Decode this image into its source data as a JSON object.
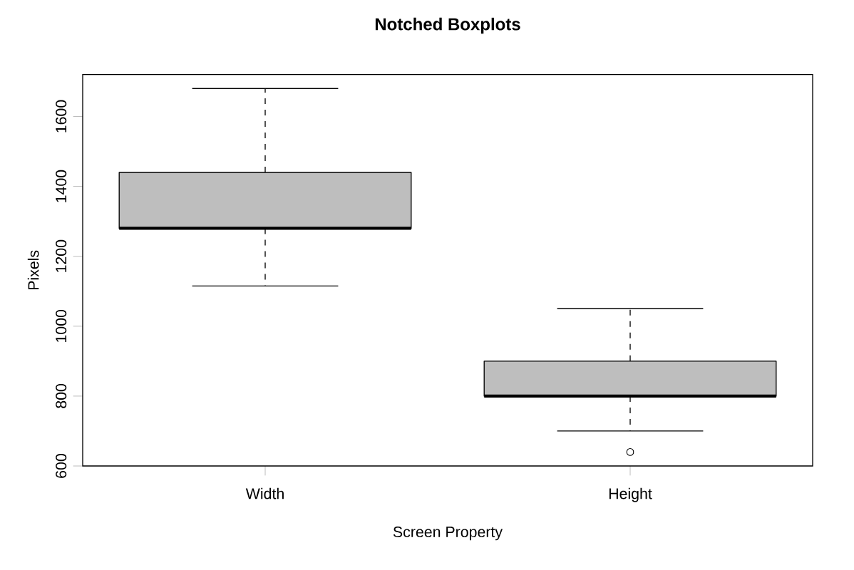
{
  "chart_data": {
    "type": "box",
    "title": "Notched Boxplots",
    "xlabel": "Screen Property",
    "ylabel": "Pixels",
    "categories": [
      "Width",
      "Height"
    ],
    "color": "#bebebe",
    "boxes": [
      {
        "low": 1115,
        "q1": 1280,
        "median": 1280,
        "q3": 1440,
        "high": 1680
      },
      {
        "low": 700,
        "q1": 800,
        "median": 800,
        "q3": 900,
        "high": 1050,
        "outliers": [
          640
        ]
      }
    ],
    "ylim": [
      600,
      1720
    ],
    "yticks": [
      600,
      800,
      1000,
      1200,
      1400,
      1600
    ],
    "grid": false
  }
}
